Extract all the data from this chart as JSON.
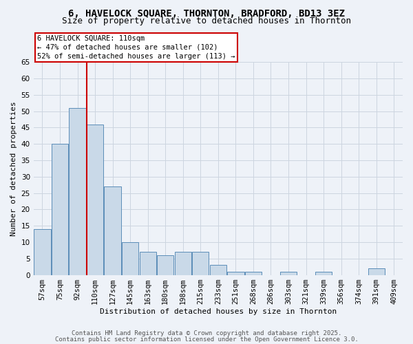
{
  "title_line1": "6, HAVELOCK SQUARE, THORNTON, BRADFORD, BD13 3EZ",
  "title_line2": "Size of property relative to detached houses in Thornton",
  "xlabel": "Distribution of detached houses by size in Thornton",
  "ylabel": "Number of detached properties",
  "categories": [
    "57sqm",
    "75sqm",
    "92sqm",
    "110sqm",
    "127sqm",
    "145sqm",
    "163sqm",
    "180sqm",
    "198sqm",
    "215sqm",
    "233sqm",
    "251sqm",
    "268sqm",
    "286sqm",
    "303sqm",
    "321sqm",
    "339sqm",
    "356sqm",
    "374sqm",
    "391sqm",
    "409sqm"
  ],
  "values": [
    14,
    40,
    51,
    46,
    27,
    10,
    7,
    6,
    7,
    7,
    3,
    1,
    1,
    0,
    1,
    0,
    1,
    0,
    0,
    2,
    0
  ],
  "bar_color": "#c9d9e8",
  "bar_edge_color": "#5b8db8",
  "red_line_index": 3,
  "annotation_title": "6 HAVELOCK SQUARE: 110sqm",
  "annotation_line2": "← 47% of detached houses are smaller (102)",
  "annotation_line3": "52% of semi-detached houses are larger (113) →",
  "annotation_box_color": "#ffffff",
  "annotation_box_edge": "#cc0000",
  "red_line_color": "#cc0000",
  "grid_color": "#ccd5e0",
  "background_color": "#eef2f8",
  "ylim": [
    0,
    65
  ],
  "yticks": [
    0,
    5,
    10,
    15,
    20,
    25,
    30,
    35,
    40,
    45,
    50,
    55,
    60,
    65
  ],
  "footer_line1": "Contains HM Land Registry data © Crown copyright and database right 2025.",
  "footer_line2": "Contains public sector information licensed under the Open Government Licence 3.0.",
  "title_fontsize": 10,
  "subtitle_fontsize": 9,
  "axis_label_fontsize": 8,
  "tick_fontsize": 7.5,
  "annotation_fontsize": 7.5,
  "footer_fontsize": 6.5
}
